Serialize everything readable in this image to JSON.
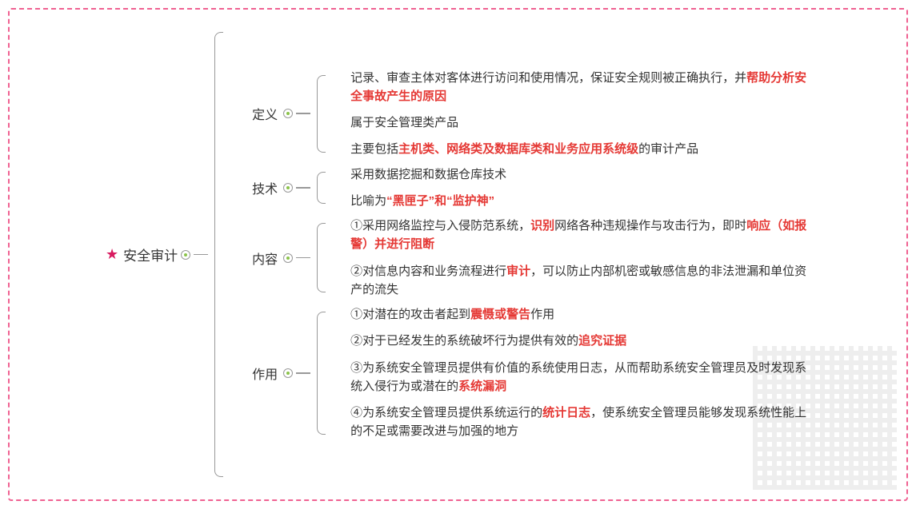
{
  "theme": {
    "border_color": "#f06292",
    "border_style": "dashed",
    "text_color": "#333333",
    "highlight_color": "#e53935",
    "star_color": "#d81b60",
    "dot_inner_color": "#8bc34a",
    "background": "#ffffff",
    "font_family": "Microsoft YaHei",
    "root_fontsize": 17,
    "branch_fontsize": 16,
    "leaf_fontsize": 15
  },
  "structure_type": "tree",
  "root": {
    "label": "安全审计",
    "icon": "star-icon"
  },
  "branches": [
    {
      "label": "定义",
      "leaves": [
        {
          "segments": [
            {
              "text": "记录、审查主体对客体进行访问和使用情况，保证安全规则被正确执行，并"
            },
            {
              "text": "帮助分析安全事故产生的原因",
              "highlight": true
            }
          ]
        },
        {
          "segments": [
            {
              "text": "属于安全管理类产品"
            }
          ]
        },
        {
          "segments": [
            {
              "text": "主要包括"
            },
            {
              "text": "主机类、网络类及数据库类和业务应用系统级",
              "highlight": true
            },
            {
              "text": "的审计产品"
            }
          ]
        }
      ]
    },
    {
      "label": "技术",
      "leaves": [
        {
          "segments": [
            {
              "text": "采用数据挖掘和数据仓库技术"
            }
          ]
        },
        {
          "segments": [
            {
              "text": "比喻为"
            },
            {
              "text": "“黑匣子”和“监护神”",
              "highlight": true
            }
          ]
        }
      ]
    },
    {
      "label": "内容",
      "leaves": [
        {
          "segments": [
            {
              "text": "①采用网络监控与入侵防范系统，"
            },
            {
              "text": "识别",
              "highlight": true
            },
            {
              "text": "网络各种违规操作与攻击行为，即时"
            },
            {
              "text": "响应（如报警）并进行阻断",
              "highlight": true
            }
          ]
        },
        {
          "segments": [
            {
              "text": "②对信息内容和业务流程进行"
            },
            {
              "text": "审计",
              "highlight": true
            },
            {
              "text": "，可以防止内部机密或敏感信息的非法泄漏和单位资产的流失"
            }
          ]
        }
      ]
    },
    {
      "label": "作用",
      "leaves": [
        {
          "segments": [
            {
              "text": "①对潜在的攻击者起到"
            },
            {
              "text": "震慑或警告",
              "highlight": true
            },
            {
              "text": "作用"
            }
          ]
        },
        {
          "segments": [
            {
              "text": "②对于已经发生的系统破坏行为提供有效的"
            },
            {
              "text": "追究证据",
              "highlight": true
            }
          ]
        },
        {
          "segments": [
            {
              "text": "③为系统安全管理员提供有价值的系统使用日志，从而帮助系统安全管理员及时发现系统入侵行为或潜在的"
            },
            {
              "text": "系统漏洞",
              "highlight": true
            }
          ]
        },
        {
          "segments": [
            {
              "text": "④为系统安全管理员提供系统运行的"
            },
            {
              "text": "统计日志",
              "highlight": true
            },
            {
              "text": "，使系统安全管理员能够发现系统性能上的不足或需要改进与加强的地方"
            }
          ]
        }
      ]
    }
  ]
}
